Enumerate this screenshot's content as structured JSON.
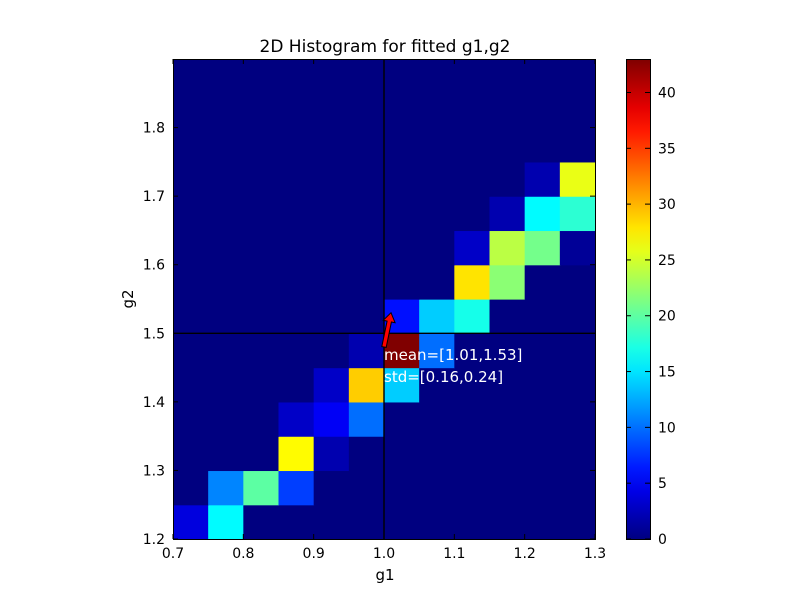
{
  "chart_data": {
    "type": "heatmap",
    "title": "2D Histogram for fitted g1,g2",
    "xlabel": "g1",
    "ylabel": "g2",
    "xlim": [
      0.7,
      1.3
    ],
    "ylim": [
      1.2,
      1.9
    ],
    "x_ticks": [
      "0.7",
      "0.8",
      "0.9",
      "1.0",
      "1.1",
      "1.2",
      "1.3"
    ],
    "y_ticks": [
      "1.2",
      "1.3",
      "1.4",
      "1.5",
      "1.6",
      "1.7",
      "1.8"
    ],
    "bins_x": 12,
    "bins_y": 14,
    "colormap": "jet",
    "color_range": [
      0,
      43
    ],
    "colorbar_ticks": [
      "0",
      "5",
      "10",
      "15",
      "20",
      "25",
      "30",
      "35",
      "40"
    ],
    "grid": false,
    "cells": [
      {
        "ix": 0,
        "iy": 0,
        "value": 4
      },
      {
        "ix": 1,
        "iy": 0,
        "value": 16
      },
      {
        "ix": 1,
        "iy": 1,
        "value": 11
      },
      {
        "ix": 2,
        "iy": 1,
        "value": 20
      },
      {
        "ix": 3,
        "iy": 1,
        "value": 8
      },
      {
        "ix": 3,
        "iy": 2,
        "value": 27
      },
      {
        "ix": 4,
        "iy": 2,
        "value": 2
      },
      {
        "ix": 3,
        "iy": 3,
        "value": 3
      },
      {
        "ix": 4,
        "iy": 3,
        "value": 5
      },
      {
        "ix": 5,
        "iy": 3,
        "value": 10
      },
      {
        "ix": 4,
        "iy": 4,
        "value": 3
      },
      {
        "ix": 5,
        "iy": 4,
        "value": 29
      },
      {
        "ix": 6,
        "iy": 4,
        "value": 14
      },
      {
        "ix": 5,
        "iy": 5,
        "value": 2
      },
      {
        "ix": 6,
        "iy": 5,
        "value": 43
      },
      {
        "ix": 7,
        "iy": 5,
        "value": 10
      },
      {
        "ix": 6,
        "iy": 6,
        "value": 6
      },
      {
        "ix": 7,
        "iy": 6,
        "value": 14
      },
      {
        "ix": 8,
        "iy": 6,
        "value": 17
      },
      {
        "ix": 8,
        "iy": 7,
        "value": 28
      },
      {
        "ix": 9,
        "iy": 7,
        "value": 22
      },
      {
        "ix": 8,
        "iy": 8,
        "value": 3
      },
      {
        "ix": 9,
        "iy": 8,
        "value": 24
      },
      {
        "ix": 10,
        "iy": 8,
        "value": 21
      },
      {
        "ix": 11,
        "iy": 8,
        "value": 1
      },
      {
        "ix": 9,
        "iy": 9,
        "value": 2
      },
      {
        "ix": 10,
        "iy": 9,
        "value": 16
      },
      {
        "ix": 11,
        "iy": 9,
        "value": 18
      },
      {
        "ix": 10,
        "iy": 10,
        "value": 2
      },
      {
        "ix": 11,
        "iy": 10,
        "value": 26
      }
    ],
    "crosshair": {
      "x": 1.0,
      "y": 1.5
    },
    "arrow": {
      "from": [
        1.0,
        1.48
      ],
      "to": [
        1.01,
        1.53
      ]
    },
    "annotation_lines": [
      "mean=[1.01,1.53]",
      "std=[0.16,0.24]"
    ]
  }
}
